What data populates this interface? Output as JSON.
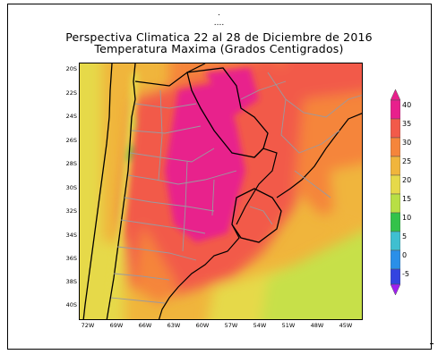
{
  "header": {
    "dots_top": ".",
    "dots_mid": "....",
    "title_line1": "Perspectiva Climatica 22 al 28 de Diciembre de 2016",
    "title_line2": "Temperatura Maxima (Grados Centigrados)"
  },
  "map": {
    "lat_labels": [
      "20S",
      "22S",
      "24S",
      "26S",
      "28S",
      "30S",
      "32S",
      "34S",
      "36S",
      "38S",
      "40S"
    ],
    "lon_labels": [
      "72W",
      "69W",
      "66W",
      "63W",
      "60W",
      "57W",
      "54W",
      "51W",
      "48W",
      "45W"
    ],
    "region": "South America: Argentina, Chile, Paraguay, Uruguay, Brazil"
  },
  "colorbar": {
    "labels": [
      "40",
      "35",
      "30",
      "25",
      "20",
      "15",
      "10",
      "5",
      "0",
      "-5"
    ],
    "colors": [
      "#e8208c",
      "#f25a4a",
      "#f5853b",
      "#f0b53c",
      "#e6d94a",
      "#b8df45",
      "#33c24a",
      "#3fbfd0",
      "#2a8fe8",
      "#3344e0",
      "#a020f0"
    ]
  }
}
